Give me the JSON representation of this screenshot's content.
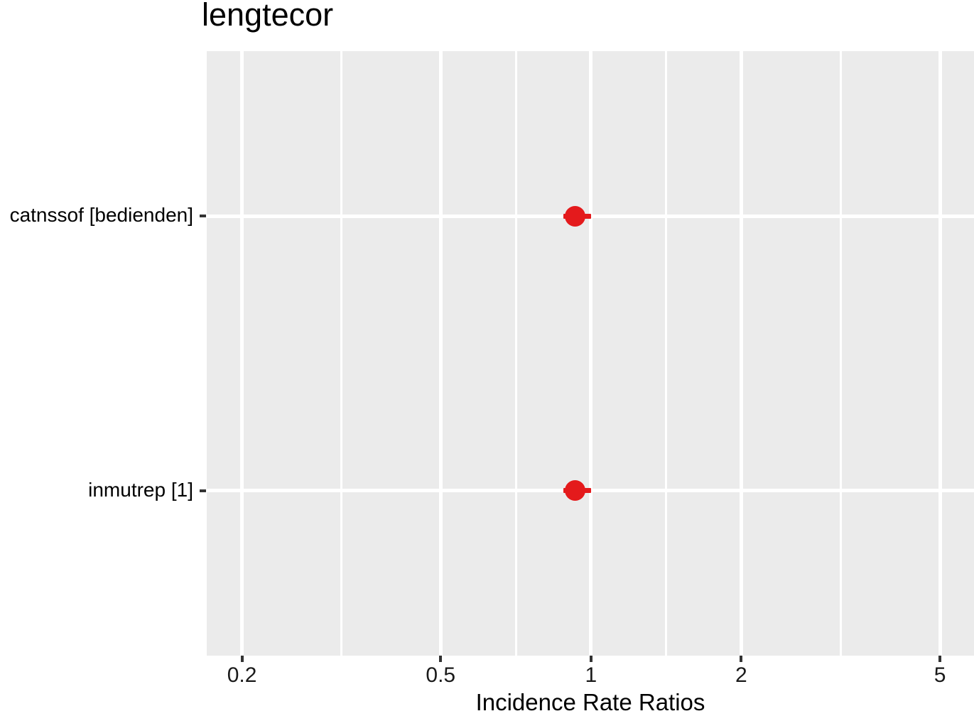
{
  "title": "lengtecor",
  "chart_data": {
    "type": "scatter",
    "subtype": "forest-dot-whisker",
    "title": "lengtecor",
    "xlabel": "Incidence Rate Ratios",
    "ylabel": "",
    "x_scale": "log10",
    "xlim": [
      0.17,
      5.85
    ],
    "grid": true,
    "legend": "none",
    "x_ticks": [
      {
        "value": 0.2,
        "label": "0.2"
      },
      {
        "value": 0.5,
        "label": "0.5"
      },
      {
        "value": 1,
        "label": "1"
      },
      {
        "value": 2,
        "label": "2"
      },
      {
        "value": 5,
        "label": "5"
      }
    ],
    "x_minor_ticks": [
      0.3162,
      0.7071,
      1.4142,
      3.1623
    ],
    "categories": [
      "catnssof [bedienden]",
      "inmutrep [1]"
    ],
    "points": [
      {
        "category": "catnssof [bedienden]",
        "estimate": 0.93,
        "ci_low": 0.88,
        "ci_high": 1.0
      },
      {
        "category": "inmutrep [1]",
        "estimate": 0.93,
        "ci_low": 0.88,
        "ci_high": 1.0
      }
    ],
    "colors": {
      "point": "#E41A1C",
      "panel_bg": "#EBEBEB",
      "gridline": "#FFFFFF",
      "tick_mark": "#333333",
      "tick_text": "#1a1a1a",
      "text": "#000000"
    }
  }
}
